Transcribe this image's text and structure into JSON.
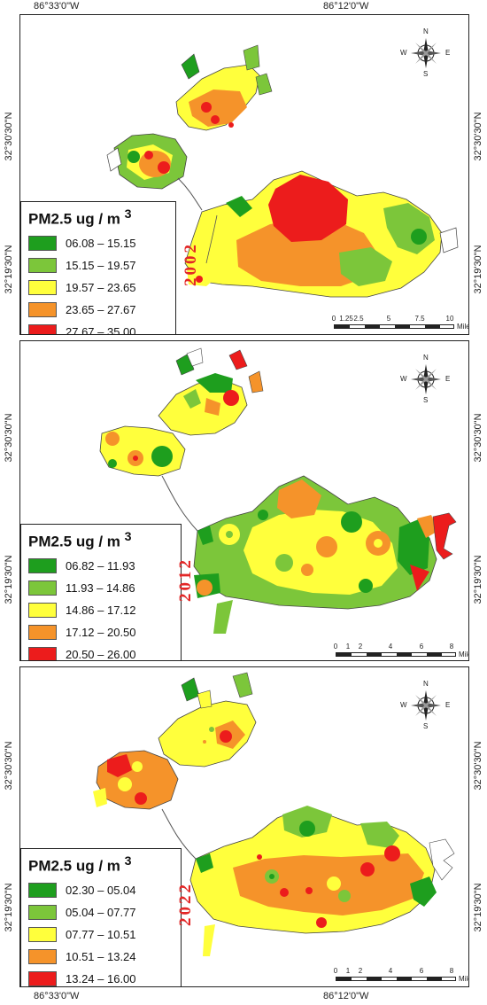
{
  "coords": {
    "top_left": "86°33'0\"W",
    "top_right": "86°12'0\"W",
    "bottom_left": "86°33'0\"W",
    "bottom_right": "86°12'0\"W",
    "lat_upper": "32°30'30\"N",
    "lat_lower": "32°19'30\"N"
  },
  "compass": {
    "n": "N",
    "s": "S",
    "e": "E",
    "w": "W"
  },
  "colors": {
    "dark_green": "#1e9e1e",
    "light_green": "#7cc63a",
    "yellow": "#ffff3c",
    "orange": "#f5932a",
    "red": "#ec1c1c"
  },
  "panels": [
    {
      "year": "2002",
      "legend_title": "PM2.5 ug / m",
      "legend_sup": "3",
      "classes": [
        "06.08 – 15.15",
        "15.15 – 19.57",
        "19.57 – 23.65",
        "23.65 – 27.67",
        "27.67 – 35.00"
      ],
      "scale_ticks": [
        "0",
        "1.25",
        "2.5",
        "5",
        "7.5",
        "10"
      ],
      "scale_unit": "Miles"
    },
    {
      "year": "2012",
      "legend_title": "PM2.5 ug / m",
      "legend_sup": "3",
      "classes": [
        "06.82 – 11.93",
        "11.93 – 14.86",
        "14.86 – 17.12",
        "17.12 – 20.50",
        "20.50 – 26.00"
      ],
      "scale_ticks": [
        "0",
        "1",
        "2",
        "4",
        "6",
        "8"
      ],
      "scale_unit": "Miles"
    },
    {
      "year": "2022",
      "legend_title": "PM2.5 ug / m",
      "legend_sup": "3",
      "classes": [
        "02.30 – 05.04",
        "05.04 – 07.77",
        "07.77 – 10.51",
        "10.51 – 13.24",
        "13.24 – 16.00"
      ],
      "scale_ticks": [
        "0",
        "1",
        "2",
        "4",
        "6",
        "8"
      ],
      "scale_unit": "Miles"
    }
  ]
}
